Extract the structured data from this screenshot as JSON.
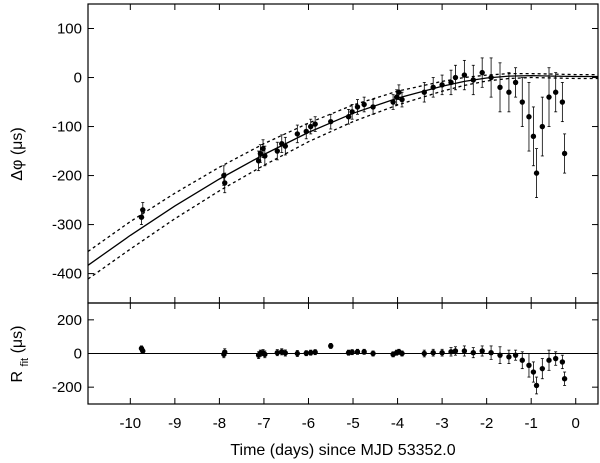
{
  "chart_data": {
    "type": "scatter",
    "xlabel": "Time (days) since MJD 53352.0",
    "x_ticks": [
      -10,
      -9,
      -8,
      -7,
      -6,
      -5,
      -4,
      -3,
      -2,
      -1,
      0
    ],
    "xlim": [
      -10.95,
      0.5
    ],
    "panels": [
      {
        "name": "top",
        "ylabel": "Δφ (μs)",
        "ylim": [
          -460,
          150
        ],
        "y_ticks": [
          100,
          0,
          -100,
          -200,
          -300,
          -400
        ],
        "curves": [
          {
            "style": "solid",
            "x": [
              -10.95,
              -10,
              -9,
              -8,
              -7,
              -6,
              -5,
              -4,
              -3,
              -2.5,
              -2,
              -1.5,
              -1,
              -0.5,
              0,
              0.5
            ],
            "y": [
              -383,
              -322,
              -262,
              -207,
              -157,
              -112,
              -73,
              -42,
              -18,
              -8,
              -1,
              3,
              4,
              3,
              2,
              2
            ]
          },
          {
            "style": "dashed",
            "x": [
              -10.95,
              -10,
              -9,
              -8,
              -7,
              -6,
              -5,
              -4,
              -3,
              -2.5,
              -2,
              -1.5,
              -1,
              -0.5,
              0,
              0.5
            ],
            "y": [
              -355,
              -294,
              -236,
              -183,
              -135,
              -93,
              -56,
              -28,
              -8,
              0,
              5,
              8,
              8,
              7,
              6,
              6
            ]
          },
          {
            "style": "dashed",
            "x": [
              -10.95,
              -10,
              -9,
              -8,
              -7,
              -6,
              -5,
              -4,
              -3,
              -2.5,
              -2,
              -1.5,
              -1,
              -0.5,
              0,
              0.5
            ],
            "y": [
              -411,
              -350,
              -288,
              -231,
              -179,
              -131,
              -90,
              -56,
              -28,
              -16,
              -7,
              -2,
              0,
              -1,
              -2,
              -2
            ]
          }
        ],
        "points_x": [
          -9.75,
          -9.72,
          -7.9,
          -7.88,
          -7.12,
          -7.08,
          -7.02,
          -6.98,
          -6.7,
          -6.6,
          -6.52,
          -6.25,
          -6.05,
          -5.95,
          -5.85,
          -5.5,
          -5.1,
          -5.02,
          -4.9,
          -4.75,
          -4.55,
          -4.1,
          -4.02,
          -3.97,
          -3.9,
          -3.4,
          -3.2,
          -3.0,
          -2.8,
          -2.7,
          -2.5,
          -2.3,
          -2.1,
          -1.9,
          -1.7,
          -1.5,
          -1.35,
          -1.2,
          -1.05,
          -0.95,
          -0.88,
          -0.75,
          -0.6,
          -0.45,
          -0.3,
          -0.25
        ],
        "points_y": [
          -285,
          -270,
          -200,
          -215,
          -170,
          -155,
          -145,
          -160,
          -150,
          -135,
          -140,
          -115,
          -110,
          -100,
          -95,
          -90,
          -80,
          -70,
          -60,
          -55,
          -60,
          -50,
          -40,
          -30,
          -45,
          -30,
          -20,
          -15,
          -10,
          0,
          5,
          -5,
          10,
          0,
          -20,
          -30,
          -10,
          -50,
          -80,
          -120,
          -195,
          -100,
          -40,
          -30,
          -50,
          -155
        ],
        "points_err": [
          15,
          15,
          20,
          20,
          20,
          18,
          18,
          20,
          18,
          18,
          18,
          18,
          15,
          15,
          15,
          15,
          15,
          15,
          15,
          15,
          15,
          15,
          15,
          15,
          15,
          20,
          20,
          20,
          25,
          25,
          30,
          30,
          30,
          40,
          50,
          40,
          30,
          50,
          70,
          60,
          50,
          60,
          60,
          40,
          40,
          40
        ]
      },
      {
        "name": "bottom",
        "ylabel_main": "R",
        "ylabel_sub": "fit",
        "ylabel_unit": " (μs)",
        "ylim": [
          -300,
          300
        ],
        "y_ticks": [
          200,
          0,
          -200
        ],
        "zero_line": 0,
        "points_x": [
          -9.75,
          -9.72,
          -7.9,
          -7.88,
          -7.12,
          -7.08,
          -7.02,
          -6.98,
          -6.7,
          -6.6,
          -6.52,
          -6.25,
          -6.05,
          -5.95,
          -5.85,
          -5.5,
          -5.1,
          -5.02,
          -4.9,
          -4.75,
          -4.55,
          -4.1,
          -4.02,
          -3.97,
          -3.9,
          -3.4,
          -3.2,
          -3.0,
          -2.8,
          -2.7,
          -2.5,
          -2.3,
          -2.1,
          -1.9,
          -1.7,
          -1.5,
          -1.35,
          -1.2,
          -1.05,
          -0.95,
          -0.88,
          -0.75,
          -0.6,
          -0.45,
          -0.3,
          -0.25
        ],
        "points_y": [
          30,
          15,
          -5,
          8,
          -10,
          2,
          5,
          -5,
          5,
          10,
          3,
          0,
          2,
          5,
          8,
          45,
          5,
          8,
          10,
          10,
          0,
          -5,
          5,
          10,
          0,
          0,
          5,
          5,
          10,
          15,
          15,
          5,
          15,
          5,
          -10,
          -20,
          -10,
          -40,
          -70,
          -110,
          -190,
          -90,
          -40,
          -30,
          -50,
          -150
        ],
        "points_err": [
          15,
          15,
          20,
          20,
          20,
          18,
          18,
          20,
          18,
          18,
          18,
          18,
          15,
          15,
          15,
          15,
          15,
          15,
          15,
          15,
          15,
          15,
          15,
          15,
          15,
          20,
          20,
          20,
          25,
          25,
          30,
          30,
          30,
          40,
          50,
          40,
          30,
          50,
          70,
          60,
          50,
          60,
          60,
          40,
          40,
          40
        ]
      }
    ]
  }
}
